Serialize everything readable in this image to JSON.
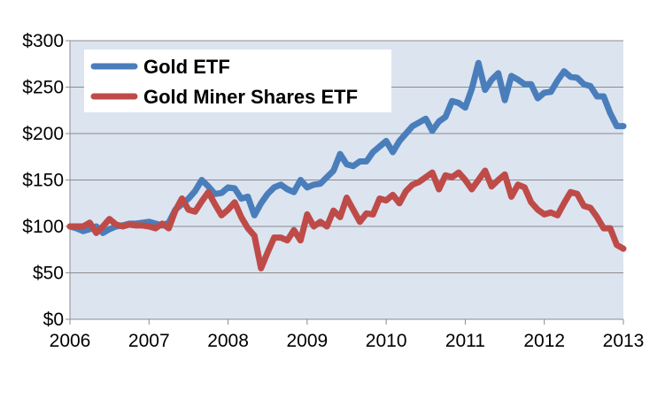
{
  "chart_data": {
    "type": "line",
    "title": "",
    "xlabel": "",
    "ylabel": "",
    "xlim": [
      2006,
      2013
    ],
    "ylim": [
      0,
      300
    ],
    "x_ticks": [
      "2006",
      "2007",
      "2008",
      "2009",
      "2010",
      "2011",
      "2012",
      "2013"
    ],
    "y_ticks": [
      "$0",
      "$50",
      "$100",
      "$150",
      "$200",
      "$250",
      "$300"
    ],
    "grid": true,
    "legend_position": "top-left",
    "plot_background": "#dce4f0",
    "series": [
      {
        "name": "Gold ETF",
        "color": "#4a7ebb",
        "x": [
          2006.0,
          2006.083,
          2006.167,
          2006.25,
          2006.333,
          2006.417,
          2006.5,
          2006.583,
          2006.667,
          2006.75,
          2006.833,
          2006.917,
          2007.0,
          2007.083,
          2007.167,
          2007.25,
          2007.333,
          2007.417,
          2007.5,
          2007.583,
          2007.667,
          2007.75,
          2007.833,
          2007.917,
          2008.0,
          2008.083,
          2008.167,
          2008.25,
          2008.333,
          2008.417,
          2008.5,
          2008.583,
          2008.667,
          2008.75,
          2008.833,
          2008.917,
          2009.0,
          2009.083,
          2009.167,
          2009.25,
          2009.333,
          2009.417,
          2009.5,
          2009.583,
          2009.667,
          2009.75,
          2009.833,
          2009.917,
          2010.0,
          2010.083,
          2010.167,
          2010.25,
          2010.333,
          2010.417,
          2010.5,
          2010.583,
          2010.667,
          2010.75,
          2010.833,
          2010.917,
          2011.0,
          2011.083,
          2011.167,
          2011.25,
          2011.333,
          2011.417,
          2011.5,
          2011.583,
          2011.667,
          2011.75,
          2011.833,
          2011.917,
          2012.0,
          2012.083,
          2012.167,
          2012.25,
          2012.333,
          2012.417,
          2012.5,
          2012.583,
          2012.667,
          2012.75,
          2012.833,
          2012.917,
          2013.0
        ],
        "values": [
          100,
          98,
          95,
          97,
          100,
          93,
          97,
          100,
          101,
          103,
          103,
          104,
          105,
          103,
          101,
          104,
          118,
          124,
          130,
          138,
          150,
          143,
          135,
          136,
          142,
          141,
          130,
          132,
          112,
          125,
          135,
          142,
          145,
          140,
          137,
          150,
          142,
          145,
          146,
          153,
          160,
          178,
          167,
          165,
          170,
          170,
          180,
          186,
          192,
          180,
          192,
          200,
          208,
          212,
          216,
          203,
          213,
          218,
          235,
          233,
          228,
          248,
          276,
          247,
          258,
          265,
          236,
          262,
          258,
          253,
          253,
          238,
          244,
          245,
          257,
          267,
          261,
          260,
          253,
          251,
          240,
          240,
          222,
          208,
          208
        ]
      },
      {
        "name": "Gold Miner Shares ETF",
        "color": "#be4b48",
        "x": [
          2006.0,
          2006.083,
          2006.167,
          2006.25,
          2006.333,
          2006.417,
          2006.5,
          2006.583,
          2006.667,
          2006.75,
          2006.833,
          2006.917,
          2007.0,
          2007.083,
          2007.167,
          2007.25,
          2007.333,
          2007.417,
          2007.5,
          2007.583,
          2007.667,
          2007.75,
          2007.833,
          2007.917,
          2008.0,
          2008.083,
          2008.167,
          2008.25,
          2008.333,
          2008.417,
          2008.5,
          2008.583,
          2008.667,
          2008.75,
          2008.833,
          2008.917,
          2009.0,
          2009.083,
          2009.167,
          2009.25,
          2009.333,
          2009.417,
          2009.5,
          2009.583,
          2009.667,
          2009.75,
          2009.833,
          2009.917,
          2010.0,
          2010.083,
          2010.167,
          2010.25,
          2010.333,
          2010.417,
          2010.5,
          2010.583,
          2010.667,
          2010.75,
          2010.833,
          2010.917,
          2011.0,
          2011.083,
          2011.167,
          2011.25,
          2011.333,
          2011.417,
          2011.5,
          2011.583,
          2011.667,
          2011.75,
          2011.833,
          2011.917,
          2012.0,
          2012.083,
          2012.167,
          2012.25,
          2012.333,
          2012.417,
          2012.5,
          2012.583,
          2012.667,
          2012.75,
          2012.833,
          2012.917,
          2013.0
        ],
        "values": [
          100,
          100,
          100,
          104,
          93,
          100,
          108,
          102,
          100,
          102,
          101,
          101,
          100,
          98,
          103,
          98,
          117,
          130,
          118,
          116,
          127,
          137,
          124,
          112,
          118,
          126,
          110,
          98,
          90,
          55,
          72,
          88,
          88,
          85,
          96,
          85,
          113,
          100,
          105,
          100,
          117,
          110,
          131,
          118,
          105,
          114,
          113,
          130,
          128,
          134,
          125,
          138,
          145,
          148,
          153,
          158,
          140,
          155,
          153,
          158,
          150,
          140,
          150,
          160,
          143,
          150,
          156,
          132,
          145,
          142,
          126,
          118,
          113,
          115,
          112,
          125,
          137,
          135,
          122,
          120,
          110,
          98,
          98,
          80,
          76
        ]
      }
    ]
  }
}
